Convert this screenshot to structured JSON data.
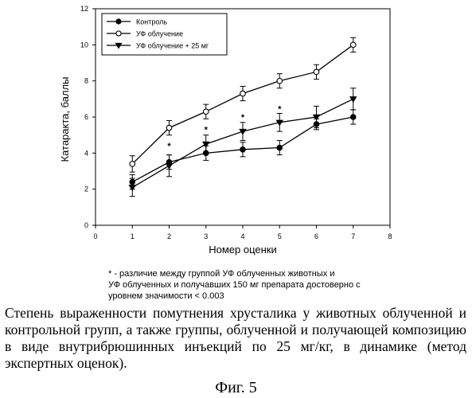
{
  "chart_data": {
    "type": "line",
    "title": "",
    "xlabel": "Номер оценки",
    "ylabel": "Катаракта, баллы",
    "xlim": [
      0,
      8
    ],
    "ylim": [
      0,
      12
    ],
    "xticks": [
      "0",
      "1",
      "2",
      "3",
      "4",
      "5",
      "6",
      "7",
      "8"
    ],
    "yticks": [
      "0",
      "2",
      "4",
      "6",
      "8",
      "10",
      "12"
    ],
    "grid": false,
    "legend_position": "top-left",
    "x": [
      1,
      2,
      3,
      4,
      5,
      6,
      7
    ],
    "series": [
      {
        "name": "Контроль",
        "marker": "filled-circle",
        "values": [
          2.4,
          3.5,
          4.0,
          4.2,
          4.3,
          5.6,
          6.0
        ],
        "err": [
          0.4,
          0.4,
          0.4,
          0.4,
          0.4,
          0.3,
          0.4
        ]
      },
      {
        "name": "УФ облучение",
        "marker": "open-circle",
        "values": [
          3.4,
          5.4,
          6.3,
          7.3,
          8.0,
          8.5,
          10.0
        ],
        "err": [
          0.45,
          0.4,
          0.4,
          0.4,
          0.4,
          0.4,
          0.4
        ]
      },
      {
        "name": "УФ облучение + 25 мг",
        "marker": "filled-triangle-down",
        "values": [
          2.1,
          3.3,
          4.5,
          5.2,
          5.7,
          6.0,
          7.0
        ],
        "err": [
          0.5,
          0.6,
          0.5,
          0.5,
          0.5,
          0.6,
          0.6
        ]
      }
    ],
    "annotations": [
      {
        "x": 2,
        "y": 4.45,
        "text": "*"
      },
      {
        "x": 3,
        "y": 5.35,
        "text": "*"
      },
      {
        "x": 4,
        "y": 6.05,
        "text": "*"
      },
      {
        "x": 5,
        "y": 6.5,
        "text": "*"
      }
    ]
  },
  "footnote_lines": [
    "* - различие между группой УФ облученных животных и",
    "УФ облученных и получавших 150 мг препарата достоверно с",
    "уровнем значимости < 0.003"
  ],
  "caption": "Степень выраженности помутнения хрусталика у животных облученной и контрольной групп, а также группы, облученной и получающей композицию в виде внутрибрюшинных инъекций по 25 мг/кг, в динамике (метод экспертных оценок).",
  "figure_label": "Фиг. 5"
}
